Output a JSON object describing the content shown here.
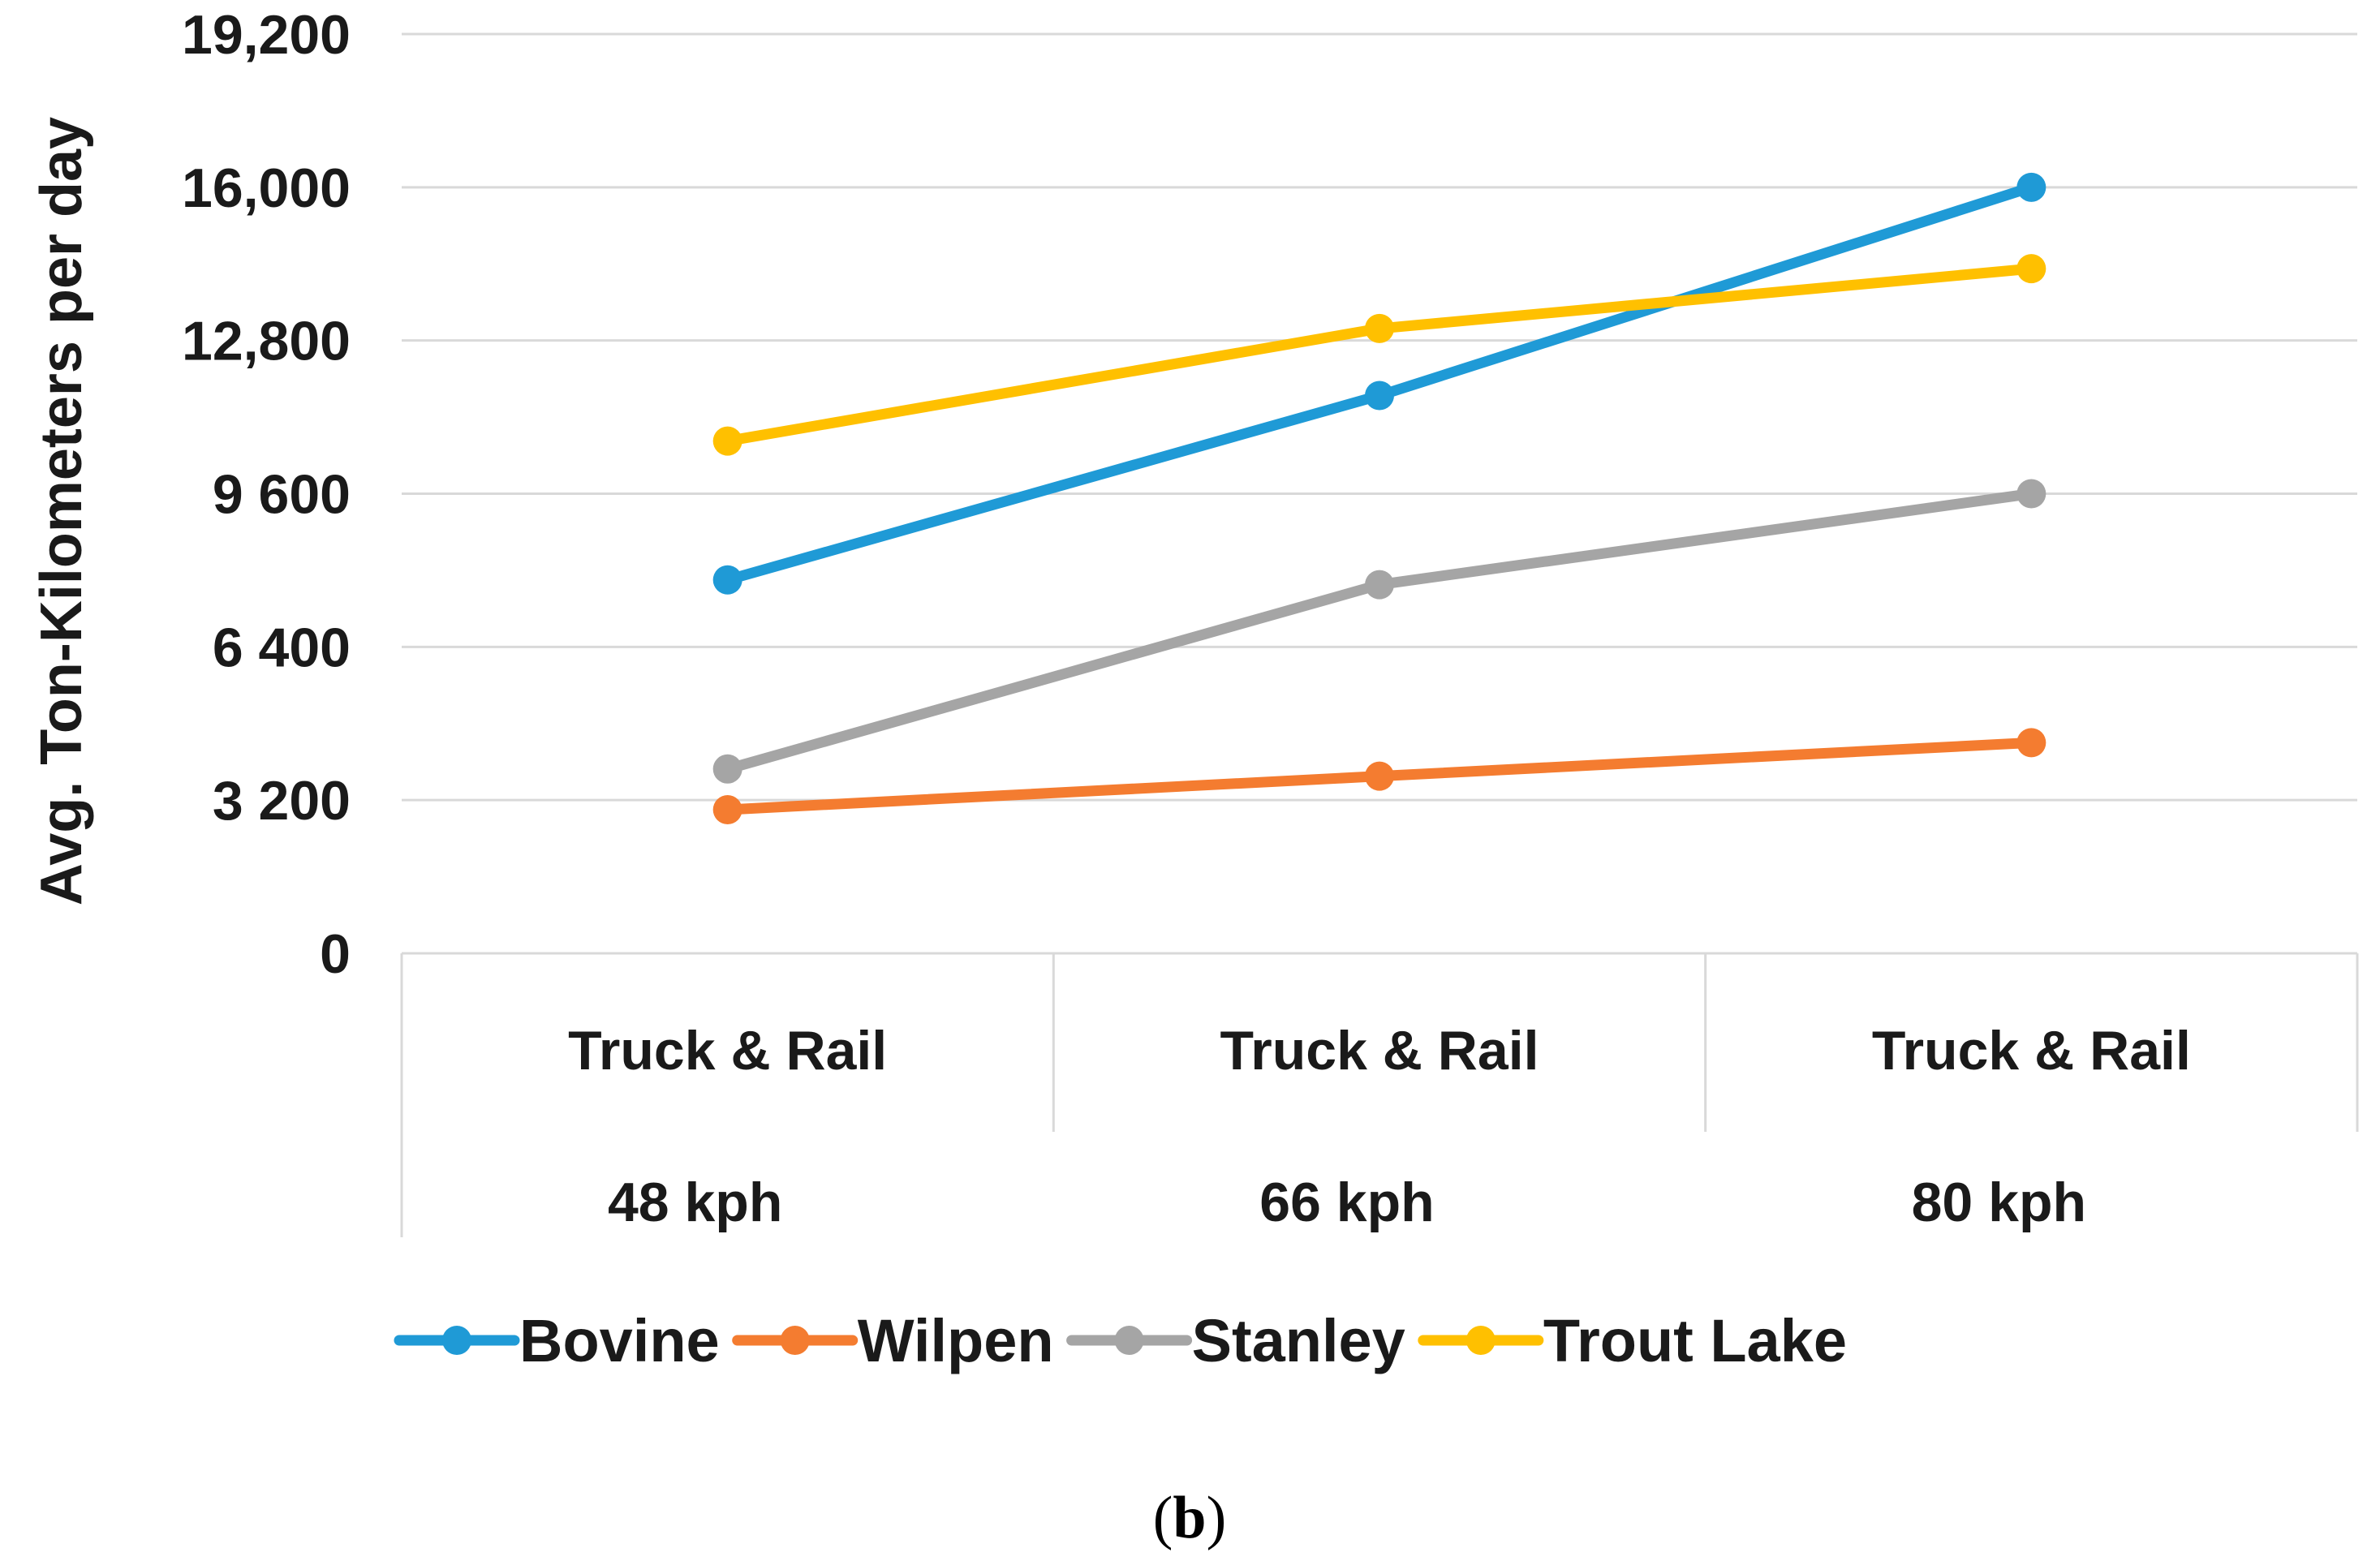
{
  "chart_data": {
    "type": "line",
    "title": "",
    "xlabel": "",
    "ylabel": "Avg. Ton-Kilometers per day",
    "ylim": [
      0,
      19200
    ],
    "yticks": [
      0,
      3200,
      6400,
      9600,
      12800,
      16000,
      19200
    ],
    "ytick_labels": [
      "0",
      "3 200",
      "6 400",
      "9 600",
      "12,800",
      "16,000",
      "19,200"
    ],
    "categories": [
      {
        "primary": "Truck & Rail",
        "secondary": "48 kph"
      },
      {
        "primary": "Truck & Rail",
        "secondary": "66 kph"
      },
      {
        "primary": "Truck & Rail",
        "secondary": "80 kph"
      }
    ],
    "series": [
      {
        "name": "Bovine",
        "color": "#1f9ad6",
        "values": [
          7800,
          11650,
          16000
        ]
      },
      {
        "name": "Wilpen",
        "color": "#f47c30",
        "values": [
          3000,
          3700,
          4400
        ]
      },
      {
        "name": "Stanley",
        "color": "#a5a5a5",
        "values": [
          3850,
          7700,
          9600
        ]
      },
      {
        "name": "Trout Lake",
        "color": "#ffc000",
        "values": [
          10700,
          13050,
          14300
        ]
      }
    ],
    "grid": true,
    "legend": "bottom",
    "caption": {
      "open": "(",
      "label": "b",
      "close": ")"
    }
  }
}
